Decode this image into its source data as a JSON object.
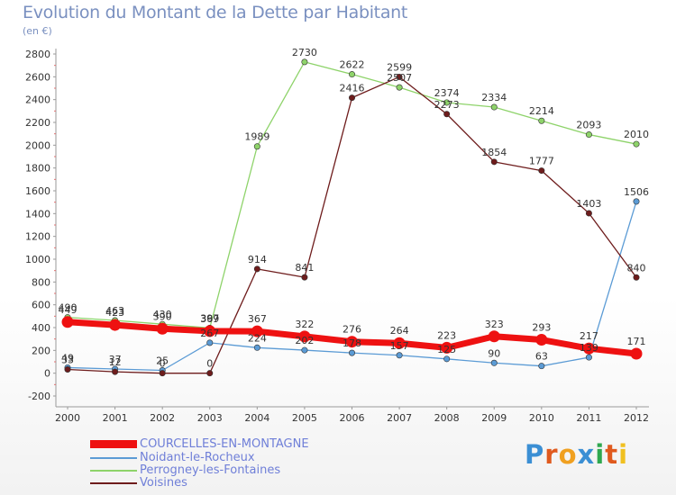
{
  "header": {
    "title": "Evolution du Montant de la Dette par Habitant",
    "unit": "(en €)"
  },
  "brand": {
    "letters": [
      "P",
      "r",
      "o",
      "x",
      "i",
      "t",
      "i"
    ],
    "colors": [
      "#3b8fd4",
      "#e05a1e",
      "#f0a020",
      "#3b8fd4",
      "#2fa84f",
      "#e05a1e",
      "#f0c020"
    ]
  },
  "chart_data": {
    "type": "line",
    "title": "Evolution du Montant de la Dette par Habitant",
    "ylabel": "(en €)",
    "xlabel": "",
    "x": [
      "2000",
      "2001",
      "2002",
      "2003",
      "2004",
      "2005",
      "2006",
      "2007",
      "2008",
      "2009",
      "2010",
      "2011",
      "2012"
    ],
    "ylim": [
      -200,
      2800
    ],
    "yticks": [
      "-200",
      "0",
      "200",
      "400",
      "600",
      "800",
      "1000",
      "1200",
      "1400",
      "1600",
      "1800",
      "2000",
      "2200",
      "2400",
      "2600",
      "2800"
    ],
    "grid": false,
    "legend": "bottom-left",
    "series": [
      {
        "name": "Noidant-le-Rocheux",
        "color": "#5b9bd5",
        "values": [
          49,
          37,
          25,
          267,
          224,
          202,
          178,
          157,
          125,
          90,
          63,
          139,
          1506
        ],
        "labels": [
          "49",
          "37",
          "25",
          "267",
          "224",
          "202",
          "178",
          "157",
          "125",
          "90",
          "63",
          "139",
          "1506"
        ]
      },
      {
        "name": "Perrogney-les-Fontaines",
        "color": "#8ed36a",
        "values": [
          490,
          463,
          430,
          397,
          1989,
          2730,
          2622,
          2507,
          2374,
          2334,
          2214,
          2093,
          2010
        ],
        "labels": [
          "490",
          "463",
          "430",
          "397",
          "1989",
          "2730",
          "2622",
          "2507",
          "2374",
          "2334",
          "2214",
          "2093",
          "2010"
        ]
      },
      {
        "name": "Voisines",
        "color": "#6e1c1c",
        "values": [
          33,
          12,
          0,
          0,
          914,
          841,
          2416,
          2599,
          2273,
          1854,
          1777,
          1403,
          840
        ],
        "labels": [
          "33",
          "12",
          "0",
          "0",
          "914",
          "841",
          "2416",
          "2599",
          "2273",
          "1854",
          "1777",
          "1403",
          "840"
        ]
      },
      {
        "name": "COURCELLES-EN-MONTAGNE",
        "color": "#ee1111",
        "values": [
          449,
          423,
          390,
          369,
          367,
          322,
          276,
          264,
          223,
          323,
          293,
          217,
          171
        ],
        "labels": [
          "449",
          "423",
          "390",
          "369",
          "367",
          "322",
          "276",
          "264",
          "223",
          "323",
          "293",
          "217",
          "171"
        ]
      }
    ],
    "legend_order": [
      "COURCELLES-EN-MONTAGNE",
      "Noidant-le-Rocheux",
      "Perrogney-les-Fontaines",
      "Voisines"
    ]
  }
}
